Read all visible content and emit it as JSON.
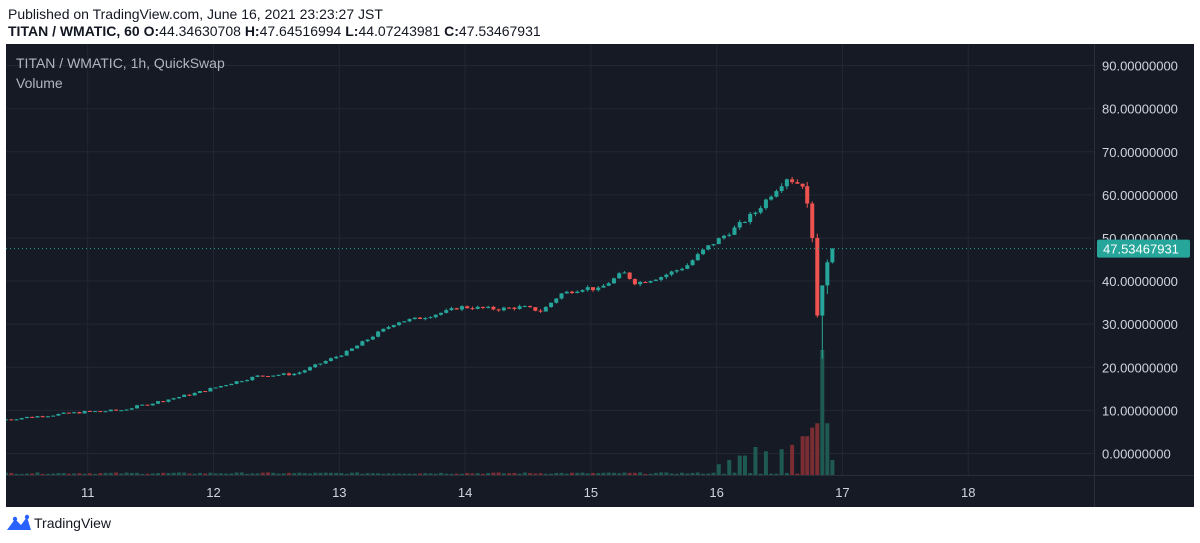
{
  "header": {
    "published": "Published on TradingView.com, June 16, 2021 23:23:27 JST",
    "symbol_line": "TITAN / WMATIC, 60",
    "o_label": "O:",
    "o_value": "44.34630708",
    "h_label": "H:",
    "h_value": "47.64516994",
    "l_label": "L:",
    "l_value": "44.07243981",
    "c_label": "C:",
    "c_value": "47.53467931"
  },
  "legend": {
    "title": "TITAN / WMATIC, 1h, QuickSwap",
    "volume_label": "Volume"
  },
  "footer": {
    "brand": "TradingView"
  },
  "colors": {
    "background": "#161a25",
    "grid": "#232734",
    "up": "#26a69a",
    "down": "#ef5350",
    "volume_up": "#1f5a52",
    "volume_down": "#7a2e34",
    "axis_text": "#d1d4dc",
    "last_price_bg": "#26a69a"
  },
  "chart_data": {
    "type": "candlestick",
    "title": "TITAN / WMATIC, 1h, QuickSwap",
    "xlabel": "",
    "ylabel": "",
    "ylim": [
      -5,
      95
    ],
    "xlim": [
      10.35,
      19.0
    ],
    "yticks": [
      0,
      10,
      20,
      30,
      40,
      50,
      60,
      70,
      80,
      90
    ],
    "ytick_labels": [
      "0.00000000",
      "10.00000000",
      "20.00000000",
      "30.00000000",
      "40.00000000",
      "50.00000000",
      "60.00000000",
      "70.00000000",
      "80.00000000",
      "90.00000000"
    ],
    "xticks": [
      11,
      12,
      13,
      14,
      15,
      16,
      17,
      18
    ],
    "xtick_labels": [
      "11",
      "12",
      "13",
      "14",
      "15",
      "16",
      "17",
      "18"
    ],
    "last_price": 47.53467931,
    "last_price_label": "47.53467931",
    "grid": true,
    "price_keyframes": [
      [
        10.35,
        7.8
      ],
      [
        10.6,
        8.5
      ],
      [
        11.0,
        9.6
      ],
      [
        11.3,
        10.0
      ],
      [
        11.6,
        12.0
      ],
      [
        11.9,
        14.0
      ],
      [
        12.2,
        16.5
      ],
      [
        12.4,
        18.0
      ],
      [
        12.7,
        18.5
      ],
      [
        12.9,
        21.0
      ],
      [
        13.1,
        23.5
      ],
      [
        13.35,
        28.0
      ],
      [
        13.5,
        30.5
      ],
      [
        13.7,
        31.5
      ],
      [
        13.9,
        33.0
      ],
      [
        14.0,
        34.0
      ],
      [
        14.3,
        33.5
      ],
      [
        14.5,
        34.0
      ],
      [
        14.65,
        33.0
      ],
      [
        14.8,
        37.0
      ],
      [
        15.0,
        38.5
      ],
      [
        15.1,
        38.0
      ],
      [
        15.3,
        42.0
      ],
      [
        15.4,
        39.5
      ],
      [
        15.6,
        41.0
      ],
      [
        15.8,
        43.5
      ],
      [
        15.95,
        47.5
      ],
      [
        16.1,
        50.5
      ],
      [
        16.2,
        52.5
      ],
      [
        16.35,
        56.0
      ],
      [
        16.5,
        61.0
      ],
      [
        16.6,
        64.0
      ],
      [
        16.7,
        62.5
      ]
    ],
    "crash_candles": [
      {
        "t": 16.72,
        "o": 62.0,
        "h": 63.0,
        "l": 57.0,
        "c": 58.0
      },
      {
        "t": 16.76,
        "o": 58.0,
        "h": 58.5,
        "l": 49.0,
        "c": 50.0
      },
      {
        "t": 16.8,
        "o": 50.0,
        "h": 51.0,
        "l": 31.5,
        "c": 32.0
      },
      {
        "t": 16.84,
        "o": 32.0,
        "h": 33.0,
        "l": 22.0,
        "c": 39.0
      },
      {
        "t": 16.88,
        "o": 39.0,
        "h": 45.0,
        "l": 37.0,
        "c": 44.35
      },
      {
        "t": 16.92,
        "o": 44.35,
        "h": 47.65,
        "l": 44.07,
        "c": 47.53
      }
    ],
    "volume_spikes": [
      {
        "t": 16.0,
        "v": 2.5
      },
      {
        "t": 16.1,
        "v": 3.5
      },
      {
        "t": 16.2,
        "v": 4.5
      },
      {
        "t": 16.3,
        "v": 6.5
      },
      {
        "t": 16.4,
        "v": 5.5
      },
      {
        "t": 16.5,
        "v": 6.0
      },
      {
        "t": 16.6,
        "v": 7.0
      },
      {
        "t": 16.7,
        "v": 9.0
      },
      {
        "t": 16.76,
        "v": 11.0
      },
      {
        "t": 16.8,
        "v": 12.0
      },
      {
        "t": 16.84,
        "v": 29.0
      },
      {
        "t": 16.88,
        "v": 12.0
      },
      {
        "t": 16.92,
        "v": 3.5
      }
    ]
  }
}
